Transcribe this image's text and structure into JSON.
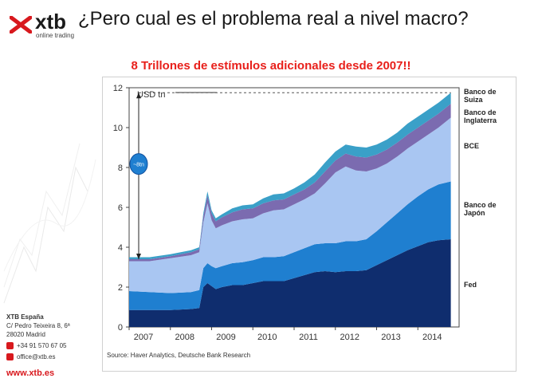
{
  "header": {
    "logo_text": "xtb",
    "logo_sub": "online trading",
    "title": "¿Pero cual es el problema real a nivel macro?"
  },
  "subtitle": "8 Trillones de estímulos adicionales desde 2007!!",
  "colors": {
    "fed": "#0f2d6e",
    "japon": "#1f7fd0",
    "bce": "#a9c6f2",
    "inglaterra": "#7b6bb0",
    "suiza": "#3aa0c8",
    "accent": "#e8201b",
    "brand_red": "#d8191e"
  },
  "chart_data": {
    "type": "area",
    "stacked": true,
    "ylabel": "USD tn",
    "ylim": [
      0,
      12
    ],
    "yticks": [
      0,
      2,
      4,
      6,
      8,
      10,
      12
    ],
    "xticks": [
      "2007",
      "2008",
      "2009",
      "2010",
      "2011",
      "2012",
      "2013",
      "2014"
    ],
    "x": [
      2007.0,
      2007.5,
      2008.0,
      2008.5,
      2008.7,
      2008.8,
      2008.9,
      2009.0,
      2009.1,
      2009.25,
      2009.5,
      2009.75,
      2010.0,
      2010.25,
      2010.5,
      2010.75,
      2011.0,
      2011.25,
      2011.5,
      2011.75,
      2012.0,
      2012.25,
      2012.5,
      2012.75,
      2013.0,
      2013.25,
      2013.5,
      2013.75,
      2014.0,
      2014.25,
      2014.5,
      2014.8
    ],
    "series": [
      {
        "name": "Fed",
        "color_key": "fed",
        "values": [
          0.85,
          0.85,
          0.85,
          0.9,
          0.95,
          2.0,
          2.2,
          2.05,
          1.9,
          2.0,
          2.1,
          2.1,
          2.2,
          2.3,
          2.3,
          2.3,
          2.45,
          2.6,
          2.75,
          2.8,
          2.75,
          2.8,
          2.8,
          2.85,
          3.1,
          3.35,
          3.6,
          3.85,
          4.05,
          4.25,
          4.35,
          4.4
        ]
      },
      {
        "name": "Banco de Japón",
        "color_key": "japon",
        "values": [
          0.95,
          0.9,
          0.85,
          0.85,
          0.9,
          0.95,
          1.0,
          1.0,
          1.05,
          1.05,
          1.1,
          1.15,
          1.15,
          1.2,
          1.2,
          1.25,
          1.3,
          1.35,
          1.4,
          1.4,
          1.45,
          1.5,
          1.5,
          1.55,
          1.7,
          1.9,
          2.1,
          2.3,
          2.5,
          2.65,
          2.8,
          2.9
        ]
      },
      {
        "name": "BCE",
        "color_key": "bce",
        "values": [
          1.5,
          1.55,
          1.75,
          1.85,
          1.9,
          2.3,
          3.0,
          2.3,
          2.0,
          2.05,
          2.1,
          2.15,
          2.1,
          2.2,
          2.35,
          2.35,
          2.4,
          2.45,
          2.55,
          3.0,
          3.55,
          3.75,
          3.55,
          3.4,
          3.15,
          2.95,
          2.85,
          2.8,
          2.75,
          2.75,
          2.85,
          3.2
        ]
      },
      {
        "name": "Banco de Inglaterra",
        "color_key": "inglaterra",
        "values": [
          0.1,
          0.1,
          0.1,
          0.15,
          0.15,
          0.3,
          0.4,
          0.35,
          0.35,
          0.4,
          0.45,
          0.5,
          0.5,
          0.5,
          0.5,
          0.5,
          0.5,
          0.5,
          0.55,
          0.6,
          0.6,
          0.65,
          0.7,
          0.7,
          0.7,
          0.7,
          0.7,
          0.7,
          0.7,
          0.7,
          0.7,
          0.7
        ]
      },
      {
        "name": "Banco de Suiza",
        "color_key": "suiza",
        "values": [
          0.1,
          0.1,
          0.1,
          0.1,
          0.1,
          0.15,
          0.2,
          0.15,
          0.15,
          0.15,
          0.2,
          0.2,
          0.2,
          0.25,
          0.3,
          0.3,
          0.3,
          0.35,
          0.4,
          0.45,
          0.45,
          0.45,
          0.5,
          0.5,
          0.5,
          0.5,
          0.5,
          0.55,
          0.55,
          0.55,
          0.55,
          0.55
        ]
      }
    ],
    "legend_labels": [
      {
        "series": "Banco de Suiza",
        "lines": [
          "Banco de",
          "Suiza"
        ]
      },
      {
        "series": "Banco de Inglaterra",
        "lines": [
          "Banco de",
          "Inglaterra"
        ]
      },
      {
        "series": "BCE",
        "lines": [
          "BCE"
        ]
      },
      {
        "series": "Banco de Japón",
        "lines": [
          "Banco de",
          "Japón"
        ]
      },
      {
        "series": "Fed",
        "lines": [
          "Fed"
        ]
      }
    ],
    "annotation": {
      "label": "~8tn",
      "from_y": 3.4,
      "to_y": 11.75
    },
    "source": "Source: Haver Analytics, Deutsche Bank Research"
  },
  "footer": {
    "company": "XTB España",
    "address1": "C/ Pedro Teixeira 8, 6ª",
    "address2": "28020 Madrid",
    "phone": "+34 91 570 67 05",
    "email": "office@xtb.es",
    "url": "www.xtb.es"
  }
}
